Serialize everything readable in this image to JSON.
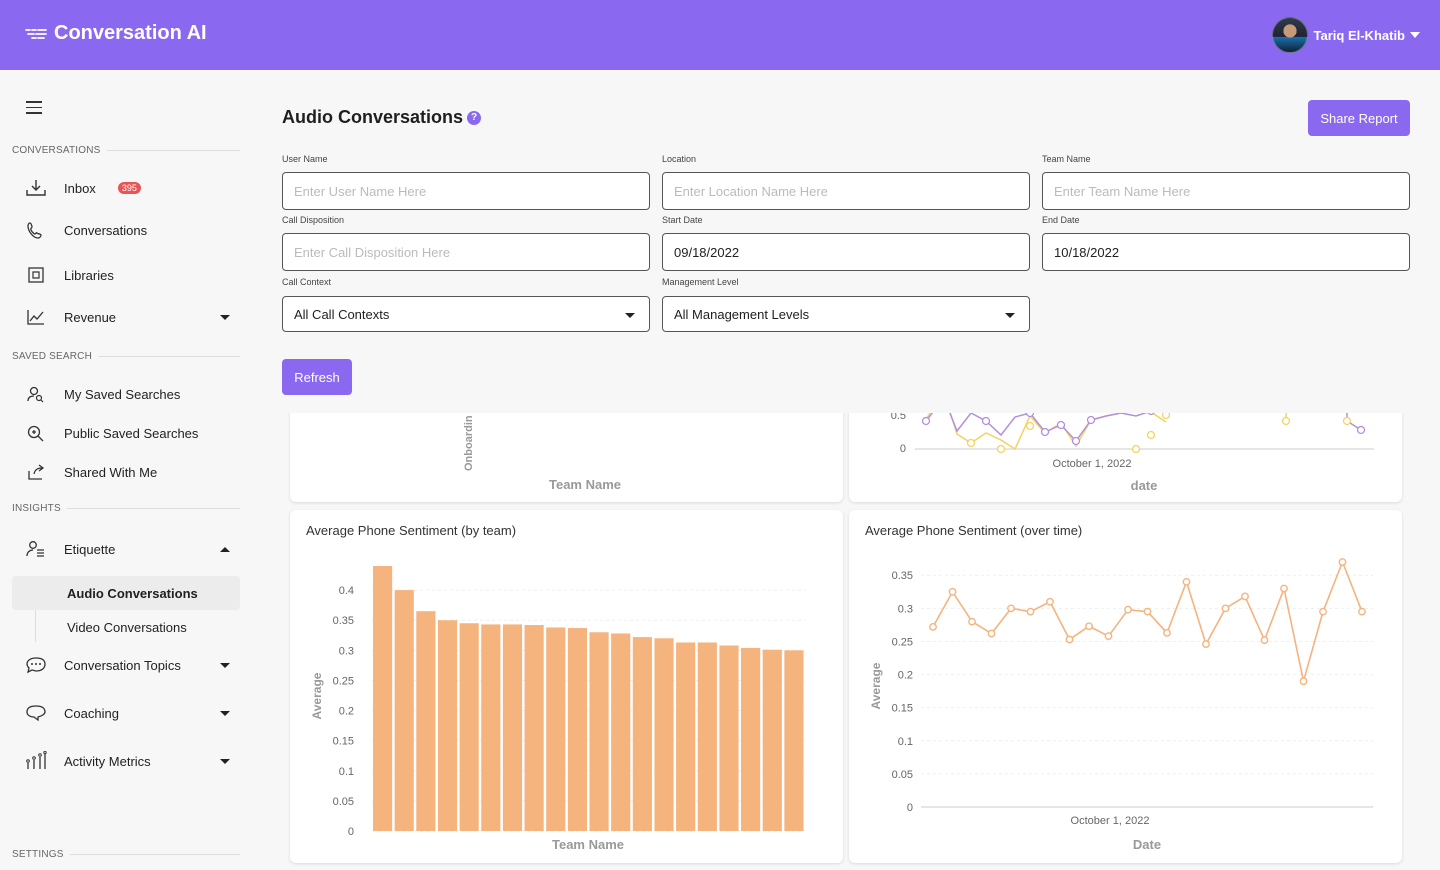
{
  "app": {
    "title": "Conversation AI"
  },
  "user": {
    "name": "Tariq El-Khatib"
  },
  "sidebar": {
    "sections": {
      "conversations": "CONVERSATIONS",
      "saved_search": "SAVED SEARCH",
      "insights": "INSIGHTS",
      "settings": "SETTINGS"
    },
    "items": {
      "inbox": {
        "label": "Inbox",
        "badge": "395"
      },
      "conversations": {
        "label": "Conversations"
      },
      "libraries": {
        "label": "Libraries"
      },
      "revenue": {
        "label": "Revenue"
      },
      "my_saved": {
        "label": "My Saved Searches"
      },
      "public_saved": {
        "label": "Public Saved Searches"
      },
      "shared": {
        "label": "Shared With Me"
      },
      "etiquette": {
        "label": "Etiquette"
      },
      "audio": {
        "label": "Audio Conversations"
      },
      "video": {
        "label": "Video Conversations"
      },
      "topics": {
        "label": "Conversation Topics"
      },
      "coaching": {
        "label": "Coaching"
      },
      "activity": {
        "label": "Activity Metrics"
      }
    }
  },
  "page": {
    "title": "Audio Conversations",
    "help": "?",
    "share_label": "Share Report",
    "refresh_label": "Refresh"
  },
  "filters": {
    "user_name": {
      "label": "User Name",
      "placeholder": "Enter User Name Here",
      "value": ""
    },
    "location": {
      "label": "Location",
      "placeholder": "Enter Location Name Here",
      "value": ""
    },
    "team_name": {
      "label": "Team Name",
      "placeholder": "Enter Team Name Here",
      "value": ""
    },
    "call_disposition": {
      "label": "Call Disposition",
      "placeholder": "Enter Call Disposition Here",
      "value": ""
    },
    "start_date": {
      "label": "Start Date",
      "value": "09/18/2022"
    },
    "end_date": {
      "label": "End Date",
      "value": "10/18/2022"
    },
    "call_context": {
      "label": "Call Context",
      "value": "All Call Contexts"
    },
    "management_level": {
      "label": "Management Level",
      "value": "All Management Levels"
    }
  },
  "colors": {
    "accent": "#8b68f0",
    "bar": "#f5b37e",
    "line_orange": "#f5b37e",
    "line_purple": "#b18fe0",
    "line_yellow": "#f4d35e"
  },
  "partial_charts": {
    "left": {
      "xlabel": "Team Name",
      "tick": "Onboardin"
    },
    "right": {
      "xlabel": "date",
      "xtick": "October 1, 2022",
      "yticks": [
        "0.5",
        "0"
      ]
    }
  },
  "chart_data": [
    {
      "type": "bar",
      "title": "Average Phone Sentiment (by team)",
      "xlabel": "Team Name",
      "ylabel": "Average",
      "ylim": [
        0,
        0.45
      ],
      "yticks": [
        "0",
        "0.05",
        "0.1",
        "0.15",
        "0.2",
        "0.25",
        "0.3",
        "0.35",
        "0.4"
      ],
      "values": [
        0.44,
        0.4,
        0.365,
        0.35,
        0.345,
        0.343,
        0.343,
        0.342,
        0.338,
        0.337,
        0.33,
        0.328,
        0.322,
        0.32,
        0.313,
        0.313,
        0.308,
        0.304,
        0.301,
        0.3
      ],
      "grid": true
    },
    {
      "type": "line",
      "title": "Average Phone Sentiment (over time)",
      "xlabel": "Date",
      "ylabel": "Average",
      "ylim": [
        0,
        0.37
      ],
      "yticks": [
        "0",
        "0.05",
        "0.1",
        "0.15",
        "0.2",
        "0.25",
        "0.3",
        "0.35"
      ],
      "xtick": "October 1, 2022",
      "values": [
        0.272,
        0.325,
        0.28,
        0.262,
        0.3,
        0.295,
        0.31,
        0.253,
        0.273,
        0.258,
        0.298,
        0.295,
        0.263,
        0.34,
        0.246,
        0.3,
        0.318,
        0.252,
        0.33,
        0.19,
        0.295,
        0.37,
        0.295
      ],
      "grid": true
    }
  ]
}
